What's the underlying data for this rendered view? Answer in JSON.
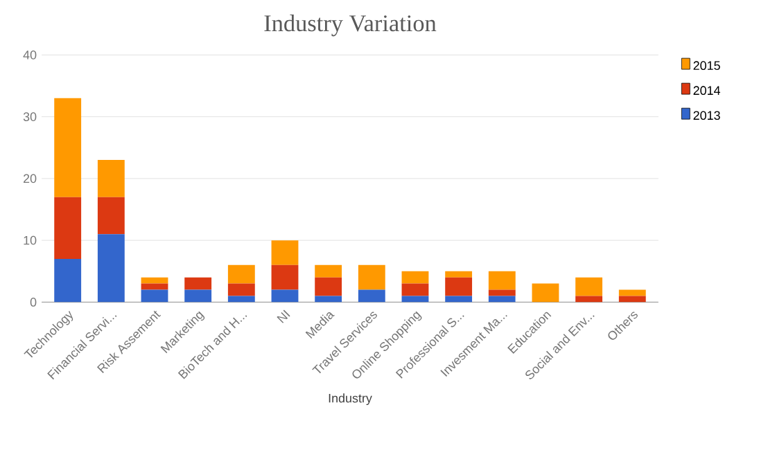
{
  "chart_data": {
    "type": "bar",
    "title": "Industry Variation",
    "xlabel": "Industry",
    "categories": [
      "Technology",
      "Financial Servi...",
      "Risk Assement",
      "Marketing",
      "BioTech and H...",
      "NI",
      "Media",
      "Travel Services",
      "Online Shopping",
      "Professional S...",
      "Invesment Ma...",
      "Education",
      "Social and Env...",
      "Others"
    ],
    "series": [
      {
        "name": "2013",
        "color": "#3366cc",
        "values": [
          7,
          11,
          2,
          2,
          1,
          2,
          1,
          2,
          1,
          1,
          1,
          0,
          0,
          0
        ]
      },
      {
        "name": "2014",
        "color": "#dc3912",
        "values": [
          10,
          6,
          1,
          2,
          2,
          4,
          3,
          0,
          2,
          3,
          1,
          0,
          1,
          1
        ]
      },
      {
        "name": "2015",
        "color": "#ff9900",
        "values": [
          16,
          6,
          1,
          0,
          3,
          4,
          2,
          4,
          2,
          1,
          3,
          3,
          3,
          1
        ]
      }
    ],
    "stacked": true,
    "ylim": [
      0,
      40
    ],
    "yticks": [
      0,
      10,
      20,
      30,
      40
    ],
    "grid": "y",
    "legend": "right"
  }
}
